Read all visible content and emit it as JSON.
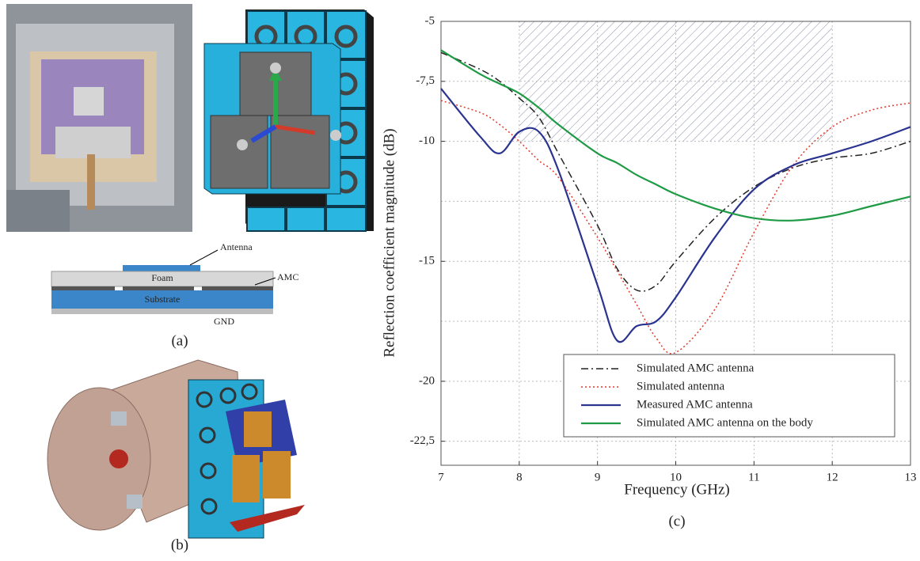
{
  "figure": {
    "panel_a": {
      "label": "(a)",
      "layers": {
        "antenna": "Antenna",
        "foam": "Foam",
        "amc": "AMC",
        "substrate": "Substrate",
        "gnd": "GND"
      }
    },
    "panel_b": {
      "label": "(b)"
    }
  },
  "chart_data": {
    "type": "line",
    "panel_label": "(c)",
    "x_label": "Frequency (GHz)",
    "y_label": "Reflection coefficient magnitude (dB)",
    "x": [
      7,
      7.5,
      7.75,
      8,
      8.25,
      8.5,
      9,
      9.25,
      9.5,
      9.75,
      10,
      10.5,
      11,
      11.5,
      12,
      12.5,
      13
    ],
    "series": [
      {
        "name": "Simulated AMC antenna",
        "color": "#222222",
        "dash": "dashdot",
        "values": [
          -6.3,
          -7.0,
          -7.5,
          -8.2,
          -9.0,
          -10.5,
          -13.5,
          -15.3,
          -16.2,
          -16.0,
          -15.0,
          -13.2,
          -11.9,
          -11.1,
          -10.7,
          -10.5,
          -10.0
        ]
      },
      {
        "name": "Simulated antenna",
        "color": "#e03a2a",
        "dash": "dotted",
        "values": [
          -8.3,
          -8.8,
          -9.3,
          -10.0,
          -10.8,
          -11.5,
          -14.0,
          -15.4,
          -16.8,
          -18.2,
          -18.8,
          -17.0,
          -13.8,
          -11.0,
          -9.4,
          -8.7,
          -8.4
        ]
      },
      {
        "name": "Measured AMC antenna",
        "color": "#2a3490",
        "dash": "solid",
        "values": [
          -7.8,
          -9.8,
          -10.5,
          -9.6,
          -9.6,
          -11.2,
          -16.0,
          -18.3,
          -17.7,
          -17.5,
          -16.5,
          -14.0,
          -12.0,
          -11.0,
          -10.5,
          -10.0,
          -9.4
        ]
      },
      {
        "name": "Simulated AMC antenna on the body",
        "color": "#1f9a45",
        "dash": "solid",
        "values": [
          -6.2,
          -7.2,
          -7.6,
          -8.0,
          -8.6,
          -9.3,
          -10.5,
          -10.9,
          -11.4,
          -11.8,
          -12.2,
          -12.8,
          -13.2,
          -13.3,
          -13.1,
          -12.7,
          -12.3
        ]
      }
    ],
    "xlim": [
      7,
      13
    ],
    "ylim": [
      -23.5,
      -5
    ],
    "xticks": [
      7,
      8,
      9,
      10,
      11,
      12,
      13
    ],
    "yticks": [
      -5,
      {
        "value": -7.5,
        "label": "-7,5"
      },
      -10,
      -15,
      -20,
      {
        "value": -22.5,
        "label": "-22,5"
      }
    ],
    "minor_gridlines": [
      -12.5,
      -17.5
    ],
    "grid": true,
    "hatched_region": {
      "xlim": [
        8,
        12
      ],
      "ylim": [
        -10,
        -5
      ]
    },
    "legend": "lower right"
  }
}
